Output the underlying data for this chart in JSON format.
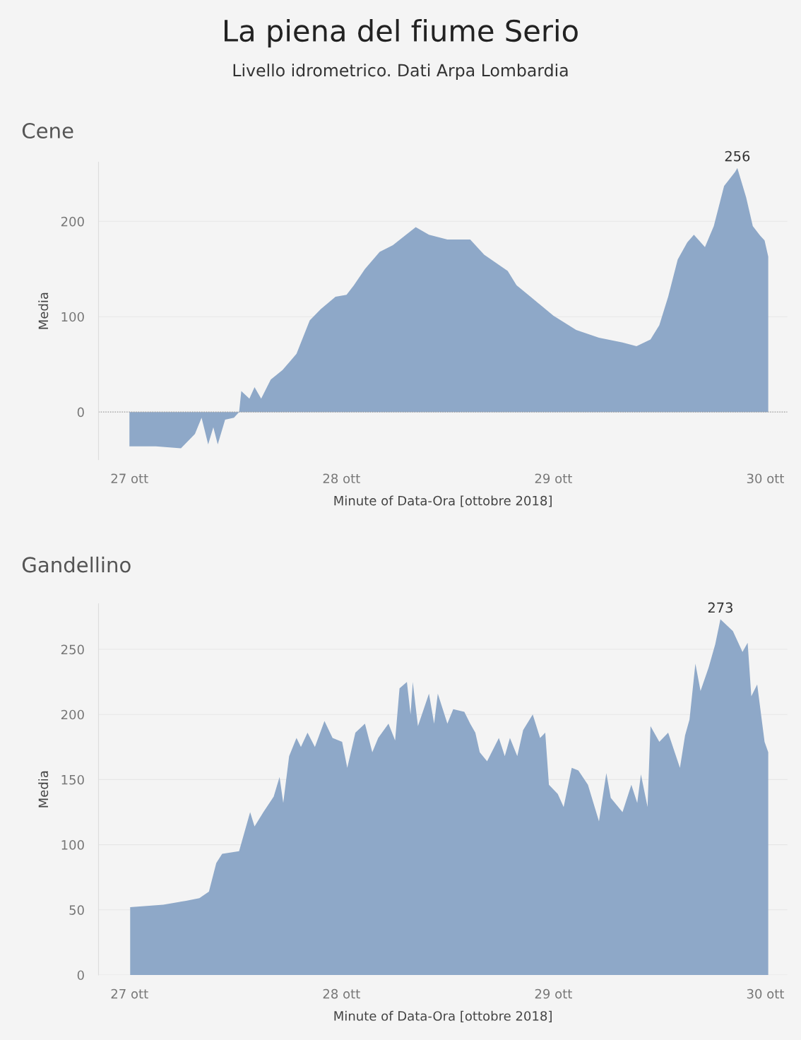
{
  "chart_data": [
    {
      "type": "other",
      "title": "La piena del fiume Serio",
      "subtitle": "Livello idrometrico. Dati Arpa Lombardia"
    },
    {
      "type": "area",
      "title": "Cene",
      "xlabel": "Minute of Data-Ora [ottobre 2018]",
      "ylabel": "Media",
      "xlim": [
        "2018-10-26T20:30",
        "2018-10-30T02:30"
      ],
      "xticks": [
        {
          "value": "2018-10-27",
          "label": "27 ott"
        },
        {
          "value": "2018-10-28",
          "label": "28 ott"
        },
        {
          "value": "2018-10-29",
          "label": "29 ott"
        },
        {
          "value": "2018-10-30",
          "label": "30 ott"
        }
      ],
      "ylim": [
        -50,
        262
      ],
      "yticks": [
        0,
        100,
        200
      ],
      "grid": "y",
      "ref_lines": [
        {
          "axis": "y",
          "value": 0,
          "color": "#999999",
          "line_style": "dotted"
        }
      ],
      "annotations": [
        {
          "text": "256",
          "x": "2018-10-29T20:50",
          "y": 256
        }
      ],
      "series": [
        {
          "color": "#8ea8c8",
          "x": [
            "2018-10-27T00:00",
            "2018-10-27T03:00",
            "2018-10-27T05:50",
            "2018-10-27T07:25",
            "2018-10-27T08:10",
            "2018-10-27T08:55",
            "2018-10-27T09:30",
            "2018-10-27T10:00",
            "2018-10-27T10:50",
            "2018-10-27T11:50",
            "2018-10-27T12:25",
            "2018-10-27T12:40",
            "2018-10-27T13:35",
            "2018-10-27T14:10",
            "2018-10-27T14:55",
            "2018-10-27T16:00",
            "2018-10-27T17:20",
            "2018-10-27T18:55",
            "2018-10-27T20:25",
            "2018-10-27T21:40",
            "2018-10-27T23:20",
            "2018-10-28T00:35",
            "2018-10-28T01:25",
            "2018-10-28T02:40",
            "2018-10-28T04:20",
            "2018-10-28T05:50",
            "2018-10-28T06:55",
            "2018-10-28T08:25",
            "2018-10-28T09:55",
            "2018-10-28T12:00",
            "2018-10-28T14:35",
            "2018-10-28T16:10",
            "2018-10-28T18:50",
            "2018-10-28T19:50",
            "2018-10-28T21:25",
            "2018-10-29T00:00",
            "2018-10-29T02:35",
            "2018-10-29T05:10",
            "2018-10-29T07:50",
            "2018-10-29T09:25",
            "2018-10-29T11:00",
            "2018-10-29T12:00",
            "2018-10-29T13:00",
            "2018-10-29T14:05",
            "2018-10-29T15:10",
            "2018-10-29T15:55",
            "2018-10-29T17:10",
            "2018-10-29T18:10",
            "2018-10-29T19:20",
            "2018-10-29T20:35",
            "2018-10-29T20:50",
            "2018-10-29T21:50",
            "2018-10-29T22:35",
            "2018-10-29T23:25",
            "2018-10-29T23:55",
            "2018-10-30T00:20"
          ],
          "values": [
            -36,
            -36,
            -38,
            -23,
            -6,
            -34,
            -16,
            -34,
            -8,
            -6,
            0,
            22,
            14,
            26,
            14,
            34,
            44,
            61,
            96,
            108,
            121,
            123,
            133,
            150,
            168,
            175,
            183,
            194,
            186,
            181,
            181,
            165,
            148,
            133,
            121,
            101,
            86,
            78,
            73,
            69,
            76,
            91,
            121,
            160,
            178,
            186,
            173,
            195,
            237,
            252,
            256,
            225,
            195,
            185,
            180,
            163
          ]
        }
      ]
    },
    {
      "type": "area",
      "title": "Gandellino",
      "xlabel": "Minute of Data-Ora [ottobre 2018]",
      "ylabel": "Media",
      "xlim": [
        "2018-10-26T20:30",
        "2018-10-30T02:30"
      ],
      "xticks": [
        {
          "value": "2018-10-27",
          "label": "27 ott"
        },
        {
          "value": "2018-10-28",
          "label": "28 ott"
        },
        {
          "value": "2018-10-29",
          "label": "29 ott"
        },
        {
          "value": "2018-10-30",
          "label": "30 ott"
        }
      ],
      "ylim": [
        0,
        285
      ],
      "yticks": [
        0,
        50,
        100,
        150,
        200,
        250
      ],
      "grid": "y",
      "annotations": [
        {
          "text": "273",
          "x": "2018-10-29T18:55",
          "y": 273
        }
      ],
      "series": [
        {
          "color": "#8ea8c8",
          "x": [
            "2018-10-27T00:05",
            "2018-10-27T03:50",
            "2018-10-27T06:25",
            "2018-10-27T07:55",
            "2018-10-27T09:00",
            "2018-10-27T09:50",
            "2018-10-27T10:30",
            "2018-10-27T12:25",
            "2018-10-27T13:00",
            "2018-10-27T13:40",
            "2018-10-27T14:10",
            "2018-10-27T15:10",
            "2018-10-27T16:20",
            "2018-10-27T17:00",
            "2018-10-27T17:25",
            "2018-10-27T18:05",
            "2018-10-27T18:55",
            "2018-10-27T19:25",
            "2018-10-27T20:10",
            "2018-10-27T21:00",
            "2018-10-27T22:05",
            "2018-10-27T23:00",
            "2018-10-28T00:05",
            "2018-10-28T00:40",
            "2018-10-28T01:35",
            "2018-10-28T02:40",
            "2018-10-28T03:30",
            "2018-10-28T04:10",
            "2018-10-28T05:20",
            "2018-10-28T06:05",
            "2018-10-28T06:35",
            "2018-10-28T07:25",
            "2018-10-28T07:50",
            "2018-10-28T08:05",
            "2018-10-28T08:40",
            "2018-10-28T09:55",
            "2018-10-28T10:30",
            "2018-10-28T10:55",
            "2018-10-28T12:00",
            "2018-10-28T12:40",
            "2018-10-28T13:55",
            "2018-10-28T14:35",
            "2018-10-28T15:10",
            "2018-10-28T15:40",
            "2018-10-28T16:30",
            "2018-10-28T17:50",
            "2018-10-28T18:30",
            "2018-10-28T19:05",
            "2018-10-28T19:55",
            "2018-10-28T20:35",
            "2018-10-28T21:40",
            "2018-10-28T22:30",
            "2018-10-28T23:05",
            "2018-10-28T23:30",
            "2018-10-29T00:30",
            "2018-10-29T01:10",
            "2018-10-29T02:05",
            "2018-10-29T02:50",
            "2018-10-29T03:55",
            "2018-10-29T05:10",
            "2018-10-29T06:00",
            "2018-10-29T06:30",
            "2018-10-29T07:50",
            "2018-10-29T08:50",
            "2018-10-29T09:30",
            "2018-10-29T09:55",
            "2018-10-29T10:40",
            "2018-10-29T11:00",
            "2018-10-29T12:00",
            "2018-10-29T13:00",
            "2018-10-29T14:20",
            "2018-10-29T14:55",
            "2018-10-29T15:25",
            "2018-10-29T16:05",
            "2018-10-29T16:40",
            "2018-10-29T17:35",
            "2018-10-29T18:20",
            "2018-10-29T18:55",
            "2018-10-29T20:20",
            "2018-10-29T21:25",
            "2018-10-29T22:00",
            "2018-10-29T22:25",
            "2018-10-29T23:05",
            "2018-10-29T23:55",
            "2018-10-30T00:20"
          ],
          "values": [
            52,
            54,
            57,
            59,
            64,
            86,
            93,
            95,
            109,
            125,
            114,
            125,
            137,
            152,
            132,
            168,
            182,
            175,
            186,
            175,
            195,
            182,
            179,
            159,
            186,
            193,
            171,
            182,
            193,
            180,
            220,
            225,
            200,
            225,
            191,
            216,
            193,
            216,
            193,
            204,
            202,
            193,
            186,
            171,
            164,
            182,
            168,
            182,
            168,
            188,
            200,
            182,
            186,
            146,
            139,
            129,
            159,
            157,
            146,
            118,
            155,
            136,
            125,
            146,
            132,
            154,
            129,
            191,
            179,
            186,
            159,
            184,
            196,
            239,
            218,
            236,
            254,
            273,
            264,
            248,
            255,
            214,
            223,
            179,
            171
          ]
        }
      ]
    }
  ]
}
